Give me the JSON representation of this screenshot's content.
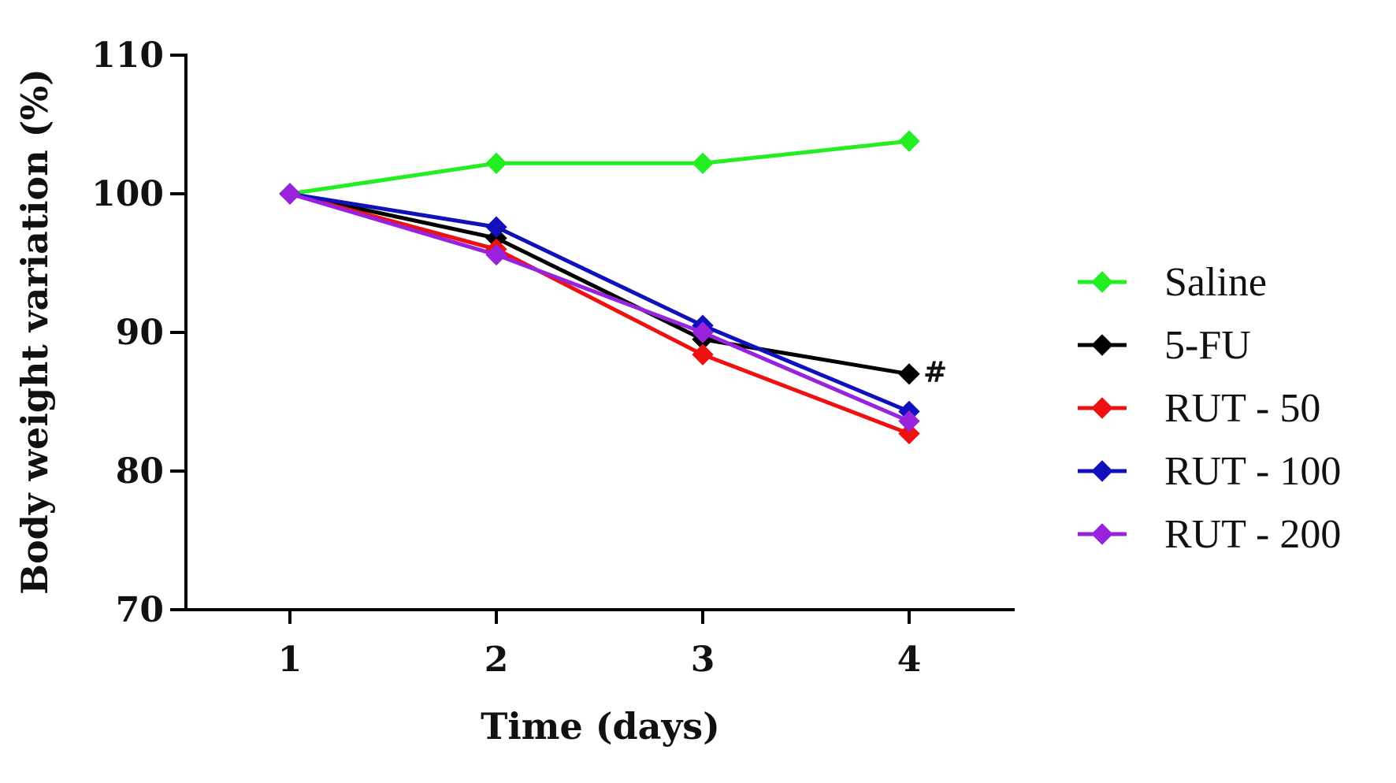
{
  "chart_data": {
    "type": "line",
    "title": "",
    "xlabel": "Time (days)",
    "ylabel": "Body weight variation (%)",
    "x": [
      1,
      2,
      3,
      4
    ],
    "xticks": [
      "1",
      "2",
      "3",
      "4"
    ],
    "ylim": [
      70,
      110
    ],
    "yticks": [
      "70",
      "80",
      "90",
      "100",
      "110"
    ],
    "grid": false,
    "legend": "right",
    "series": [
      {
        "name": "Saline",
        "color": "#22ee22",
        "values": [
          100,
          102.2,
          102.2,
          103.8
        ]
      },
      {
        "name": "5-FU",
        "color": "#000000",
        "values": [
          100,
          96.8,
          89.5,
          87.0
        ]
      },
      {
        "name": "RUT - 50",
        "color": "#ee1111",
        "values": [
          100,
          96.0,
          88.4,
          82.7
        ]
      },
      {
        "name": "RUT - 100",
        "color": "#1111bb",
        "values": [
          100,
          97.6,
          90.5,
          84.3
        ]
      },
      {
        "name": "RUT - 200",
        "color": "#9922dd",
        "values": [
          100,
          95.6,
          90.0,
          83.6
        ]
      }
    ],
    "annotations": [
      {
        "text": "#",
        "series": "5-FU",
        "x": 4
      }
    ]
  }
}
